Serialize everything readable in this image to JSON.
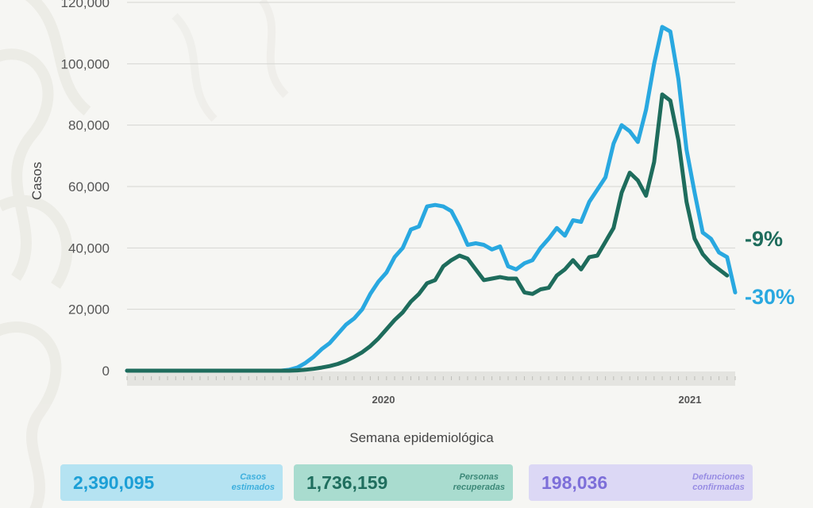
{
  "chart_data": {
    "type": "line",
    "xlabel": "Semana epidemiológica",
    "ylabel": "Casos",
    "ylim": [
      0,
      120000
    ],
    "y_ticks": [
      "0",
      "20,000",
      "40,000",
      "60,000",
      "80,000",
      "100,000",
      "120,000"
    ],
    "y_tick_values": [
      0,
      20000,
      40000,
      60000,
      80000,
      100000,
      120000
    ],
    "x_year_labels": [
      "2020",
      "2021"
    ],
    "grid": true,
    "series": [
      {
        "color": "#29a8e0",
        "end_label": "-30%",
        "values": [
          0,
          0,
          0,
          0,
          0,
          0,
          0,
          0,
          0,
          0,
          0,
          0,
          0,
          0,
          0,
          0,
          0,
          0,
          0,
          0,
          300,
          1000,
          2500,
          4500,
          7000,
          9000,
          12000,
          15000,
          17000,
          20000,
          25000,
          29000,
          32000,
          37000,
          40000,
          46000,
          47000,
          53500,
          54000,
          53500,
          52000,
          47000,
          41000,
          41500,
          41000,
          39500,
          40500,
          34000,
          33000,
          35000,
          36000,
          40000,
          43000,
          46500,
          44000,
          49000,
          48500,
          55000,
          59000,
          63000,
          74000,
          80000,
          78000,
          74500,
          85000,
          100000,
          112000,
          110500,
          95000,
          72000,
          58000,
          45000,
          43000,
          38500,
          37000,
          25500
        ]
      },
      {
        "color": "#1e6c5c",
        "end_label": "-9%",
        "values": [
          0,
          0,
          0,
          0,
          0,
          0,
          0,
          0,
          0,
          0,
          0,
          0,
          0,
          0,
          0,
          0,
          0,
          0,
          0,
          0,
          0,
          100,
          300,
          600,
          1000,
          1500,
          2200,
          3200,
          4500,
          6000,
          8000,
          10500,
          13500,
          16500,
          19000,
          22500,
          25000,
          28500,
          29500,
          34000,
          36000,
          37500,
          36500,
          33000,
          29500,
          30000,
          30500,
          30000,
          30000,
          25500,
          25000,
          26500,
          27000,
          31000,
          33000,
          36000,
          33000,
          37000,
          37500,
          42000,
          46500,
          58000,
          64500,
          62000,
          57000,
          68000,
          90000,
          88000,
          75000,
          55000,
          43000,
          38000,
          35000,
          33000,
          31000
        ]
      }
    ]
  },
  "stats": [
    {
      "value": "2,390,095",
      "label": "Casos\nestimados",
      "color": "#1c9fd6"
    },
    {
      "value": "1,736,159",
      "label": "Personas\nrecuperadas",
      "color": "#1f6e5e"
    },
    {
      "value": "198,036",
      "label": "Defunciones\nconfirmadas",
      "color": "#7d6fd9"
    }
  ]
}
